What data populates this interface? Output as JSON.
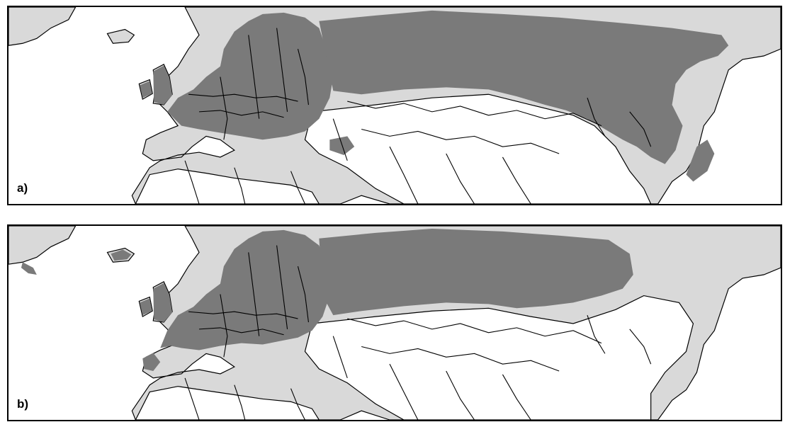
{
  "panels": [
    {
      "id": "a",
      "label": "a)"
    },
    {
      "id": "b",
      "label": "b)"
    }
  ],
  "colors": {
    "range": "#7a7a7a",
    "land_outside_range": "#d9d9d9",
    "unmodelled_land": "#ffffff",
    "border": "#000000"
  }
}
